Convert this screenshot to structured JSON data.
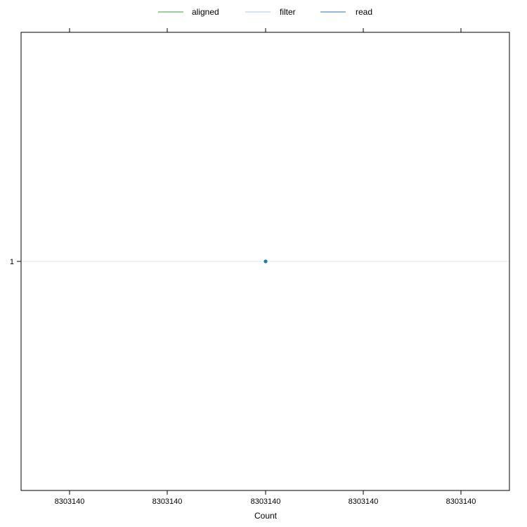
{
  "chart_data": {
    "type": "scatter",
    "title": "",
    "xlabel": "Count",
    "ylabel": "",
    "x_tick_labels": [
      "8303140",
      "8303140",
      "8303140",
      "8303140",
      "8303140"
    ],
    "y_categories": [
      "1"
    ],
    "legend": {
      "placement": "top",
      "entries": [
        {
          "label": "aligned",
          "color": "#33a02c"
        },
        {
          "label": "filter",
          "color": "#a6cee3"
        },
        {
          "label": "read",
          "color": "#1f78b4"
        }
      ]
    },
    "series": [
      {
        "name": "read",
        "color": "#1f78b4",
        "points": [
          {
            "x": 8303140,
            "y": "1"
          }
        ]
      }
    ],
    "grid": {
      "horizontal_reference_lines": true,
      "color": "#e6e6e6"
    }
  }
}
